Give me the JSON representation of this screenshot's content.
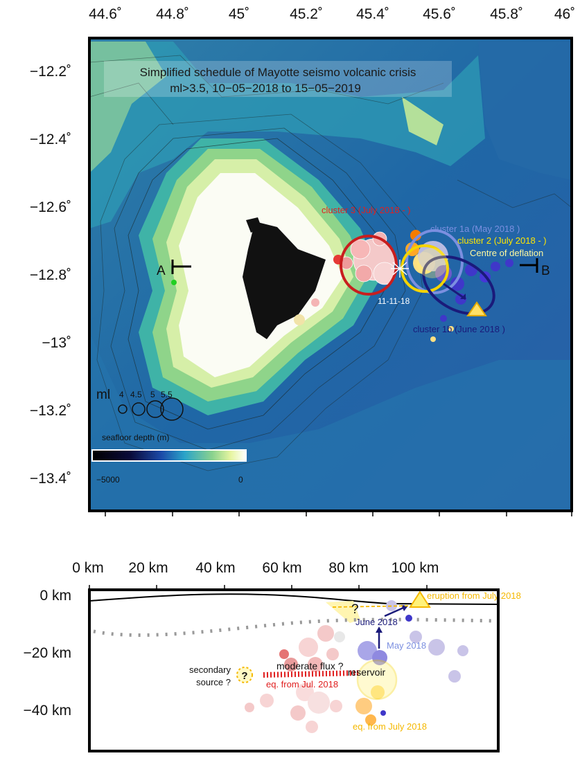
{
  "map": {
    "title_line1": "Simplified schedule of Mayotte seismo volcanic crisis",
    "title_line2": "ml>3.5, 10−05−2018 to 15−05−2019",
    "lon_ticks": [
      "44.6˚",
      "44.8˚",
      "45˚",
      "45.2˚",
      "45.4˚",
      "45.6˚",
      "45.8˚",
      "46˚"
    ],
    "lat_ticks": [
      "−12.2˚",
      "−12.4˚",
      "−12.6˚",
      "−12.8˚",
      "−13˚",
      "−13.2˚",
      "−13.4˚"
    ],
    "cluster3": "cluster 3 (July 2018 - )",
    "cluster1a": "cluster 1a (May 2018 )",
    "cluster2": "cluster 2 (July 2018 - )",
    "deflation": "Centre of deflation",
    "cluster1b": "cluster 1b (June 2018 )",
    "date_label": "11-11-18",
    "profile_start": "A",
    "profile_end": "B",
    "ml_label": "ml",
    "ml_values": [
      "4",
      "4.5",
      "5",
      "5.5"
    ],
    "depth_title": "seafloor depth (m)",
    "depth_min": "−5000",
    "depth_max": "0",
    "colors": {
      "cluster3": "#d01e1e",
      "cluster1a": "#7b8fe0",
      "cluster2": "#f5d400",
      "cluster1b": "#1a1a7a",
      "deflation": "#fff27a",
      "eruption": "#f5b800",
      "flux": "#e01e1e"
    }
  },
  "section": {
    "km_ticks": [
      "0 km",
      "20 km",
      "40 km",
      "60 km",
      "80 km",
      "100 km"
    ],
    "depth_ticks": [
      "0 km",
      "−20 km",
      "−40 km"
    ],
    "eruption": "eruption from July 2018",
    "june": "June 2018",
    "may": "May 2018",
    "question": "?",
    "secondary_1": "secondary",
    "secondary_2": "source ?",
    "secondary_q": "?",
    "moderate": "moderate flux ?",
    "eq_jul": "eq. from Jul. 2018",
    "reservoir": "reservoir",
    "eq_july": "eq. from July 2018"
  }
}
